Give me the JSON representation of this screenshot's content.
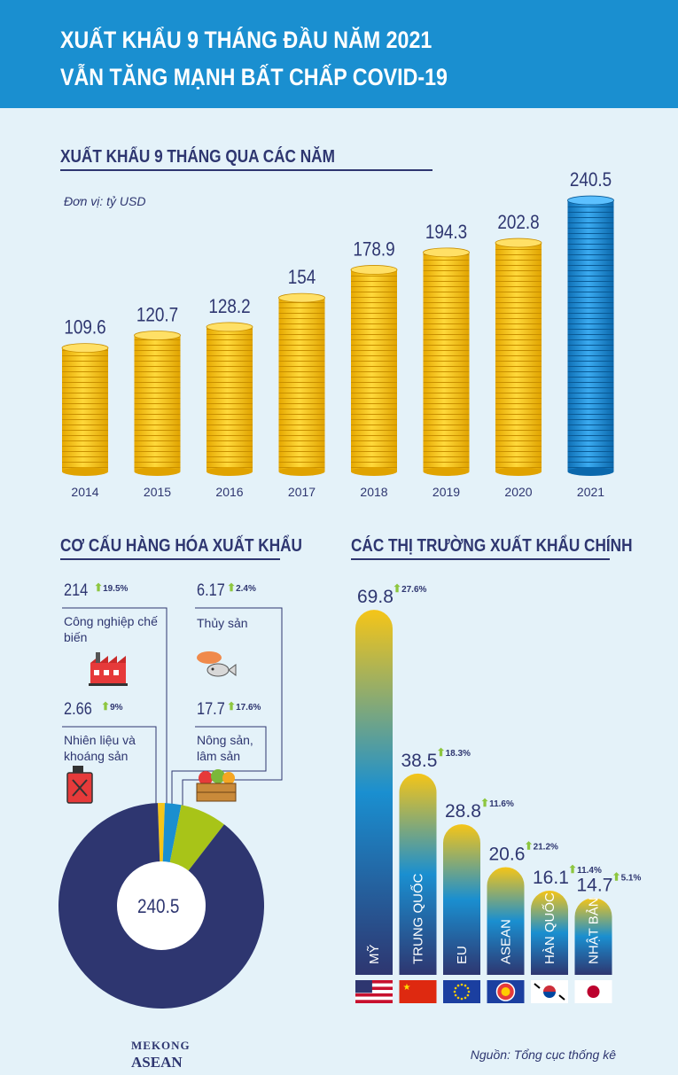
{
  "header": {
    "line1": "XUẤT KHẨU 9 THÁNG ĐẦU NĂM 2021",
    "line2": "VẪN TĂNG MẠNH BẤT CHẤP COVID-19"
  },
  "section1": {
    "title": "XUẤT KHẨU 9 THÁNG QUA CÁC NĂM",
    "unit": "Đơn vị: tỷ USD"
  },
  "section2": {
    "title": "CƠ CẤU HÀNG HÓA XUẤT KHẨU"
  },
  "section3": {
    "title": "CÁC THỊ TRƯỜNG XUẤT KHẨU CHÍNH"
  },
  "chart_data": [
    {
      "type": "bar",
      "title": "XUẤT KHẨU 9 THÁNG QUA CÁC NĂM",
      "ylabel": "Đơn vị: tỷ USD",
      "categories": [
        "2014",
        "2015",
        "2016",
        "2017",
        "2018",
        "2019",
        "2020",
        "2021"
      ],
      "values": [
        109.6,
        120.7,
        128.2,
        154,
        178.9,
        194.3,
        202.8,
        240.5
      ],
      "value_labels": [
        "109.6",
        "120.7",
        "128.2",
        "154",
        "178.9",
        "194.3",
        "202.8",
        "240.5"
      ],
      "colors": {
        "default": "#f5c518",
        "highlight": "#1a8fd0"
      },
      "highlight_index": 7
    },
    {
      "type": "pie",
      "title": "CƠ CẤU HÀNG HÓA XUẤT KHẨU",
      "total": "240.5",
      "slices": [
        {
          "label": "Công nghiệp chế biến",
          "value": 214,
          "value_label": "214",
          "change": "19.5%",
          "color": "#2e3670",
          "icon": "factory-icon"
        },
        {
          "label": "Nhiên liệu và khoáng sản",
          "value": 2.66,
          "value_label": "2.66",
          "change": "9%",
          "color": "#f5c518",
          "icon": "fuel-can-icon"
        },
        {
          "label": "Thủy sản",
          "value": 6.17,
          "value_label": "6.17",
          "change": "2.4%",
          "color": "#1a8fd0",
          "icon": "seafood-icon"
        },
        {
          "label": "Nông sản, lâm sản",
          "value": 17.7,
          "value_label": "17.7",
          "change": "17.6%",
          "color": "#a8c418",
          "icon": "produce-crate-icon"
        }
      ]
    },
    {
      "type": "bar",
      "title": "CÁC THỊ TRƯỜNG XUẤT KHẨU CHÍNH",
      "categories": [
        "MỸ",
        "TRUNG QUỐC",
        "EU",
        "ASEAN",
        "HÀN QUỐC",
        "NHẬT BẢN"
      ],
      "values": [
        69.8,
        38.5,
        28.8,
        20.6,
        16.1,
        14.7
      ],
      "value_labels": [
        "69.8",
        "38.5",
        "28.8",
        "20.6",
        "16.1",
        "14.7"
      ],
      "changes": [
        "27.6%",
        "18.3%",
        "11.6%",
        "21.2%",
        "11.4%",
        "5.1%"
      ],
      "flags": [
        "us-flag-icon",
        "china-flag-icon",
        "eu-flag-icon",
        "asean-flag-icon",
        "korea-flag-icon",
        "japan-flag-icon"
      ]
    }
  ],
  "footer": {
    "logo_line1": "MEKONG",
    "logo_line2": "ASEAN",
    "source": "Nguồn: Tổng cục thống kê"
  }
}
